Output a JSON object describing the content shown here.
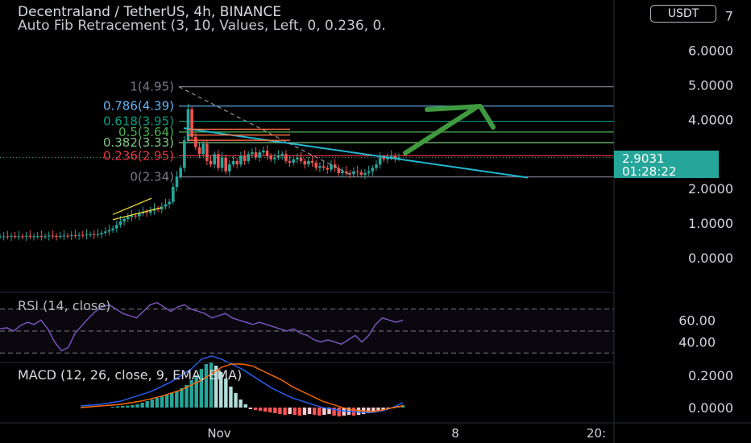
{
  "header": {
    "title": "Decentraland / TetherUS, 4h, BINANCE",
    "fib_indicator": "Auto Fib Retracement (3, 10, Values, Left, 0, 0.236, 0.",
    "rsi_indicator": "RSI (14, close)",
    "macd_indicator": "MACD (12, 26, close, 9, EMA, EMA)",
    "currency_badge": "USDT"
  },
  "price_tag": {
    "price": "2.9031",
    "countdown": "01:28:22"
  },
  "colors": {
    "background": "#000000",
    "up_candle": "#26a69a",
    "down_candle": "#ef5350",
    "trendline": "#22b8cf",
    "arrow": "#3f9a3f",
    "rsi_line": "#7e57c2",
    "macd_line": "#2962ff",
    "signal_line": "#ff6d00"
  },
  "chart_data": [
    {
      "type": "candlestick",
      "name": "price",
      "y_ticks": [
        "0.0000",
        "1.0000",
        "2.0000",
        "4.0000",
        "5.0000",
        "6.0000",
        "7"
      ],
      "x_ticks": [
        "Nov",
        "8",
        "20:"
      ],
      "ylim": [
        -0.5,
        7.3
      ],
      "fib_levels": [
        {
          "ratio": "0",
          "label": "0(2.34)",
          "price": 2.34,
          "color": "#787b86"
        },
        {
          "ratio": "0.236",
          "label": "0.236(2.95)",
          "price": 2.95,
          "color": "#f23645"
        },
        {
          "ratio": "0.382",
          "label": "0.382(3.33)",
          "price": 3.33,
          "color": "#81c784"
        },
        {
          "ratio": "0.5",
          "label": "0.5(3.64)",
          "price": 3.64,
          "color": "#4caf50"
        },
        {
          "ratio": "0.618",
          "label": "0.618(3.95)",
          "price": 3.95,
          "color": "#089981"
        },
        {
          "ratio": "0.786",
          "label": "0.786(4.39)",
          "price": 4.39,
          "color": "#64b5f6"
        },
        {
          "ratio": "1",
          "label": "1(4.95)",
          "price": 4.95,
          "color": "#787b86"
        }
      ],
      "last_price": 2.9031,
      "close_series": [
        0.62,
        0.62,
        0.61,
        0.63,
        0.62,
        0.62,
        0.61,
        0.63,
        0.62,
        0.62,
        0.63,
        0.62,
        0.62,
        0.64,
        0.63,
        0.62,
        0.63,
        0.64,
        0.63,
        0.65,
        0.64,
        0.66,
        0.65,
        0.67,
        0.68,
        0.66,
        0.68,
        0.72,
        0.76,
        0.8,
        0.85,
        0.95,
        1.05,
        1.12,
        1.18,
        1.22,
        1.2,
        1.28,
        1.32,
        1.3,
        1.36,
        1.42,
        1.4,
        1.48,
        1.55,
        1.62,
        2.05,
        2.35,
        2.6,
        3.4,
        4.3,
        3.5,
        3.2,
        3.0,
        3.3,
        2.8,
        2.7,
        3.0,
        2.6,
        2.9,
        2.5,
        2.7,
        2.8,
        2.7,
        2.95,
        2.8,
        3.0,
        3.05,
        2.9,
        3.05,
        3.1,
        2.95,
        2.85,
        2.9,
        2.95,
        3.0,
        2.8,
        2.75,
        2.85,
        2.9,
        2.8,
        2.7,
        2.8,
        2.75,
        2.6,
        2.65,
        2.6,
        2.55,
        2.7,
        2.6,
        2.45,
        2.5,
        2.45,
        2.42,
        2.5,
        2.48,
        2.4,
        2.45,
        2.5,
        2.6,
        2.7,
        2.9,
        2.85,
        2.9,
        2.95,
        2.88,
        2.9
      ]
    },
    {
      "type": "line",
      "name": "RSI",
      "y_ticks": [
        "40.00",
        "60.00"
      ],
      "bands": [
        30,
        50,
        70
      ],
      "ylim": [
        25,
        80
      ],
      "values": [
        52,
        53,
        50,
        55,
        58,
        56,
        60,
        52,
        40,
        32,
        35,
        48,
        55,
        62,
        68,
        72,
        74,
        70,
        66,
        64,
        62,
        68,
        74,
        76,
        72,
        68,
        72,
        74,
        70,
        68,
        66,
        62,
        64,
        66,
        62,
        60,
        58,
        56,
        58,
        56,
        54,
        52,
        50,
        52,
        48,
        46,
        42,
        40,
        42,
        40,
        38,
        42,
        46,
        40,
        46,
        56,
        62,
        60,
        58,
        60
      ]
    },
    {
      "type": "bar",
      "name": "MACD",
      "y_ticks": [
        "0.0000",
        "0.2000"
      ],
      "ylim": [
        -0.1,
        0.28
      ],
      "histogram": [
        0.005,
        0.008,
        0.01,
        0.012,
        0.015,
        0.02,
        0.03,
        0.04,
        0.05,
        0.06,
        0.07,
        0.08,
        0.09,
        0.1,
        0.12,
        0.14,
        0.17,
        0.2,
        0.24,
        0.27,
        0.28,
        0.26,
        0.22,
        0.18,
        0.13,
        0.09,
        0.05,
        0.02,
        -0.01,
        -0.015,
        -0.02,
        -0.025,
        -0.03,
        -0.035,
        -0.04,
        -0.045,
        -0.04,
        -0.045,
        -0.05,
        -0.045,
        -0.04,
        -0.045,
        -0.05,
        -0.045,
        -0.04,
        -0.05,
        -0.055,
        -0.05,
        -0.045,
        -0.05,
        -0.045,
        -0.04,
        -0.035,
        -0.03,
        -0.02,
        -0.015,
        -0.01,
        0.0,
        0.01,
        0.015
      ],
      "macd_line": [
        0.01,
        0.015,
        0.02,
        0.03,
        0.04,
        0.06,
        0.08,
        0.1,
        0.13,
        0.16,
        0.2,
        0.24,
        0.3,
        0.32,
        0.3,
        0.27,
        0.24,
        0.2,
        0.16,
        0.12,
        0.09,
        0.06,
        0.04,
        0.02,
        0.0,
        -0.01,
        -0.02,
        -0.025,
        -0.03,
        -0.03,
        -0.02,
        0.0,
        0.03
      ],
      "signal_line": [
        0.0,
        0.005,
        0.01,
        0.015,
        0.02,
        0.03,
        0.04,
        0.055,
        0.07,
        0.09,
        0.11,
        0.14,
        0.17,
        0.21,
        0.25,
        0.27,
        0.27,
        0.26,
        0.23,
        0.2,
        0.17,
        0.13,
        0.1,
        0.07,
        0.04,
        0.02,
        0.0,
        -0.015,
        -0.02,
        -0.025,
        -0.015,
        0.0,
        0.01
      ]
    }
  ]
}
